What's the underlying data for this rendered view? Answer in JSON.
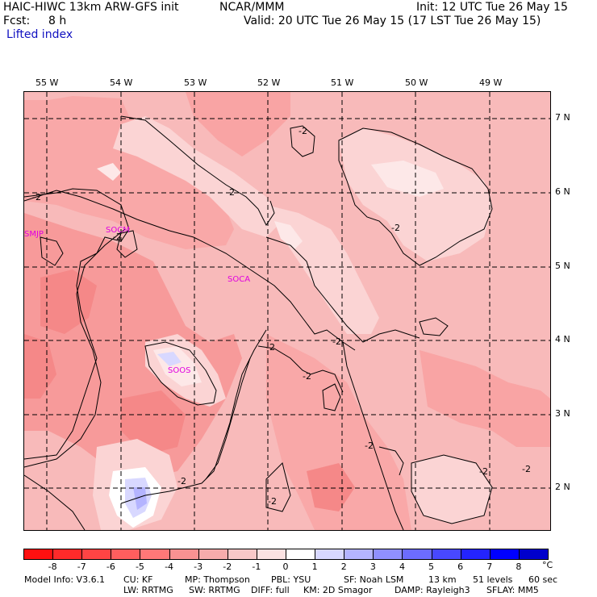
{
  "header": {
    "model": "HAIC-HIWC 13km ARW-GFS init",
    "org": "NCAR/MMM",
    "init": "Init: 12 UTC Tue 26 May 15",
    "fcst_label": "Fcst:",
    "fcst_value": "8 h",
    "valid": "Valid: 20 UTC Tue 26 May 15 (17 LST Tue 26 May 15)",
    "field": "Lifted index"
  },
  "lon_ticks": [
    "55 W",
    "54 W",
    "53 W",
    "52 W",
    "51 W",
    "50 W",
    "49 W"
  ],
  "lat_ticks": [
    "7 N",
    "6 N",
    "5 N",
    "4 N",
    "3 N",
    "2 N"
  ],
  "stations": [
    "SMJP",
    "SOCM",
    "SOCA",
    "SOOS"
  ],
  "contour_label": "-2",
  "colorbar": {
    "labels": [
      "-8",
      "-7",
      "-6",
      "-5",
      "-4",
      "-3",
      "-2",
      "-1",
      "0",
      "1",
      "2",
      "3",
      "4",
      "5",
      "6",
      "7",
      "8"
    ],
    "unit": "°C",
    "colors": [
      "#ff1010",
      "#ff2a2a",
      "#ff4444",
      "#ff5e5e",
      "#ff7878",
      "#f99292",
      "#f7acac",
      "#f8c8c8",
      "#fbe2e2",
      "#ffffff",
      "#d8d8ff",
      "#b4b4ff",
      "#9090ff",
      "#6c6cff",
      "#4848ff",
      "#2424ff",
      "#0000ff",
      "#0000cc"
    ]
  },
  "footer": {
    "line1": [
      "Model Info: V3.6.1",
      "CU: KF",
      "MP: Thompson",
      "PBL: YSU",
      "SF: Noah LSM",
      "13 km",
      "51 levels",
      "60 sec"
    ],
    "line2": [
      "LW: RRTMG",
      "SW: RRTMG",
      "DIFF: full",
      "KM: 2D Smagor",
      "DAMP: Rayleigh3",
      "SFLAY: MM5"
    ]
  }
}
